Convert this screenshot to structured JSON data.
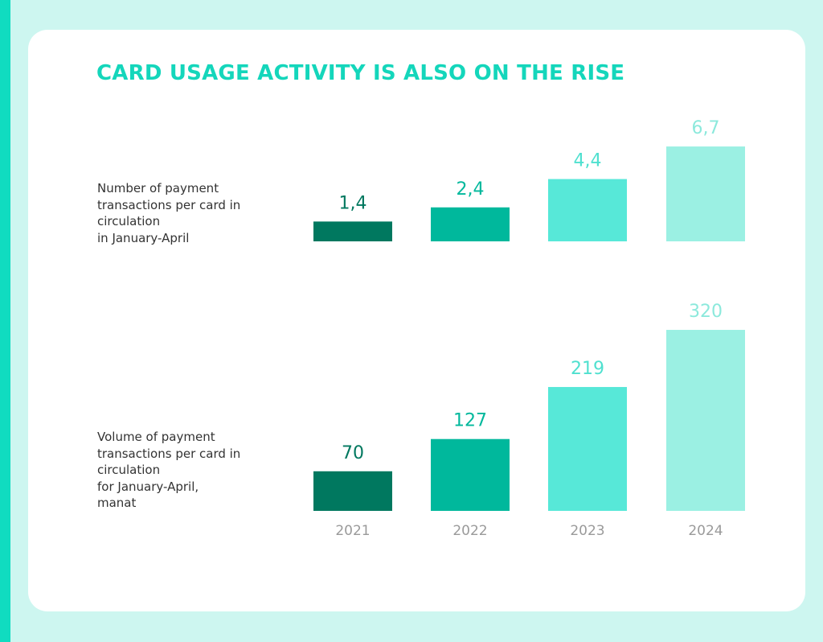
{
  "title": "CARD USAGE ACTIVITY IS ALSO ON THE RISE",
  "chart_data": [
    {
      "type": "bar",
      "label": "Number of payment\ntransactions per card in\ncirculation\nin January-April",
      "categories": [
        "2021",
        "2022",
        "2023",
        "2024"
      ],
      "values": [
        1.4,
        2.4,
        4.4,
        6.7
      ],
      "value_labels": [
        "1,4",
        "2,4",
        "4,4",
        "6,7"
      ],
      "colors": [
        "#00785f",
        "#00b89c",
        "#57e8d8",
        "#9bf0e3"
      ],
      "label_colors": [
        "#00785f",
        "#00b89c",
        "#4fe0cf",
        "#8ce9dc"
      ]
    },
    {
      "type": "bar",
      "label": "Volume of payment\ntransactions per card in\ncirculation\nfor January-April,\nmanat",
      "categories": [
        "2021",
        "2022",
        "2023",
        "2024"
      ],
      "values": [
        70,
        127,
        219,
        320
      ],
      "value_labels": [
        "70",
        "127",
        "219",
        "320"
      ],
      "colors": [
        "#00785f",
        "#00b89c",
        "#57e8d8",
        "#9bf0e3"
      ],
      "label_colors": [
        "#00785f",
        "#00b89c",
        "#4fe0cf",
        "#8ce9dc"
      ]
    }
  ]
}
